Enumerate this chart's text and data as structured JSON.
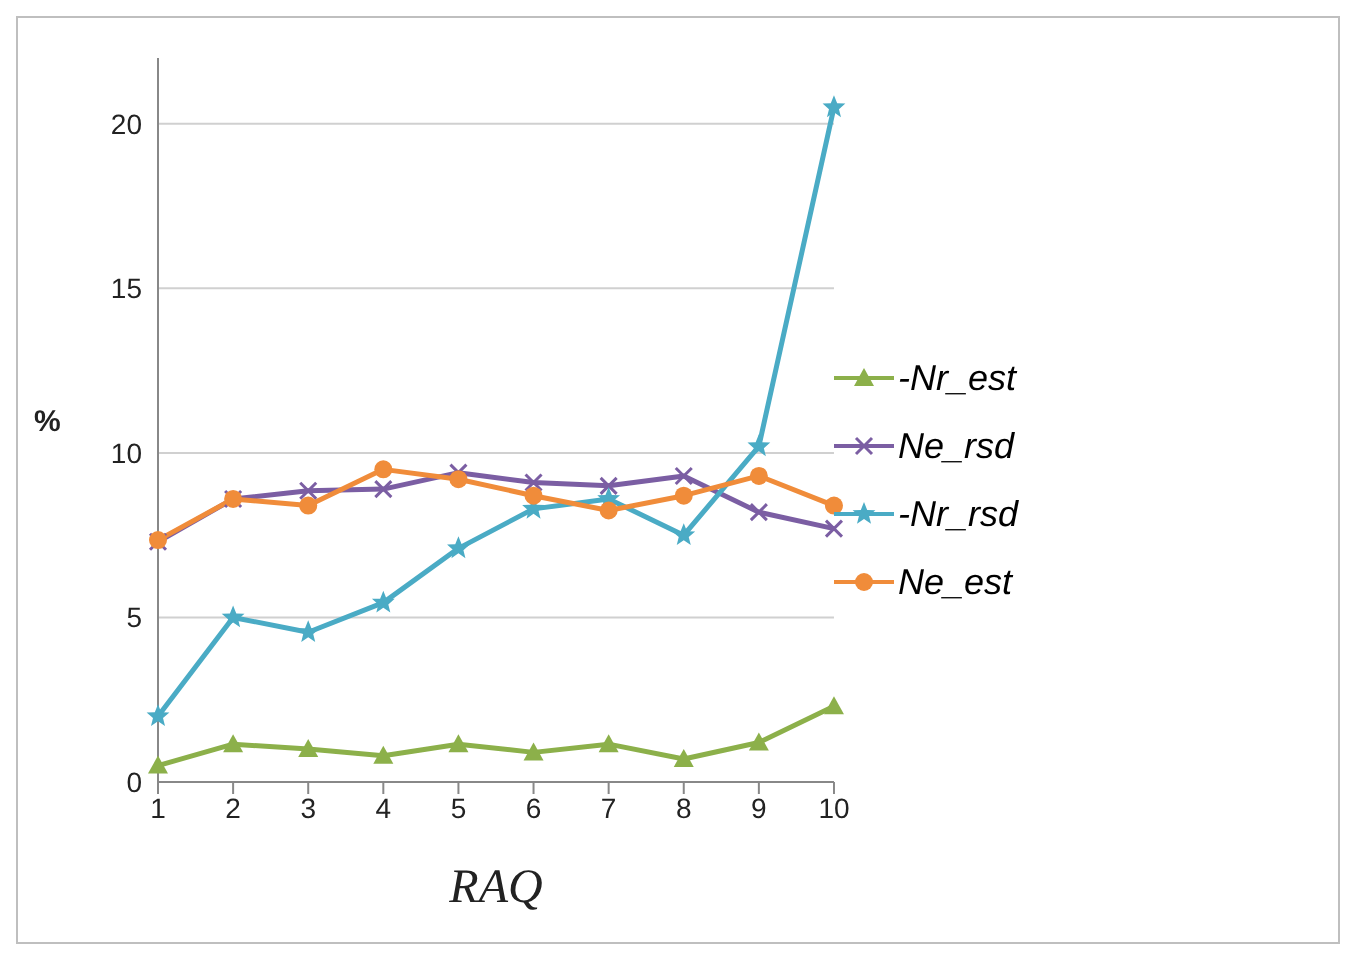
{
  "chart_data": {
    "type": "line",
    "xlabel": "RAQ",
    "ylabel": "%",
    "categories": [
      "1",
      "2",
      "3",
      "4",
      "5",
      "6",
      "7",
      "8",
      "9",
      "10"
    ],
    "ylim": [
      0,
      22
    ],
    "yticks": [
      0,
      5,
      10,
      15,
      20
    ],
    "grid": "y",
    "legend": "right",
    "series": [
      {
        "name": "-Nr_est",
        "color": "#8cb04a",
        "marker": "triangle",
        "values": [
          0.5,
          1.15,
          1.0,
          0.8,
          1.15,
          0.9,
          1.15,
          0.7,
          1.2,
          2.3
        ]
      },
      {
        "name": "Ne_rsd",
        "color": "#7b5ea3",
        "marker": "cross",
        "values": [
          7.3,
          8.6,
          8.85,
          8.9,
          9.4,
          9.1,
          9.0,
          9.3,
          8.2,
          7.7
        ]
      },
      {
        "name": "-Nr_rsd",
        "color": "#4aabc5",
        "marker": "star",
        "values": [
          2.0,
          5.0,
          4.55,
          5.45,
          7.1,
          8.3,
          8.6,
          7.5,
          10.2,
          20.5
        ]
      },
      {
        "name": "Ne_est",
        "color": "#f08c3a",
        "marker": "circle",
        "values": [
          7.35,
          8.6,
          8.4,
          9.5,
          9.2,
          8.7,
          8.25,
          8.7,
          9.3,
          8.4
        ]
      }
    ]
  }
}
